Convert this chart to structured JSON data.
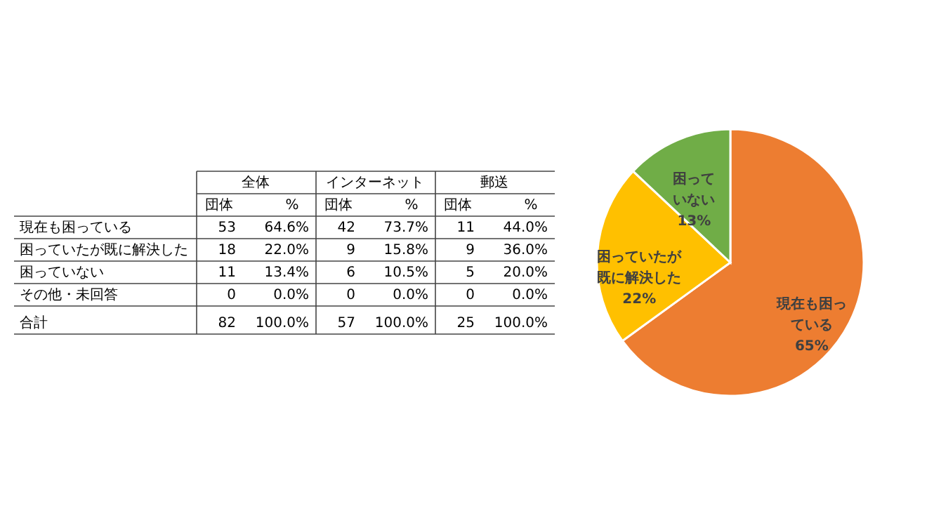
{
  "chart_data": [
    {
      "type": "other",
      "annotations": [
        "全体",
        "インターネット",
        "郵送",
        "団体",
        "%",
        "団体",
        "%",
        "団体",
        "%",
        "現在も困っている",
        "53",
        "64.6%",
        "42",
        "73.7%",
        "11",
        "44.0%",
        "困っていたが既に解決した",
        "18",
        "22.0%",
        "9",
        "15.8%",
        "9",
        "36.0%",
        "困っていない",
        "11",
        "13.4%",
        "6",
        "10.5%",
        "5",
        "20.0%",
        "その他・未回答",
        "0",
        "0.0%",
        "0",
        "0.0%",
        "0",
        "0.0%",
        "合計",
        "82",
        "100.0%",
        "57",
        "100.0%",
        "25",
        "100.0%"
      ]
    },
    {
      "type": "pie",
      "categories": [
        "現在も困っている",
        "困っていたが既に解決した",
        "困っていない"
      ],
      "values": [
        65,
        22,
        13
      ],
      "colors": [
        "#ed7d31",
        "#ffc000",
        "#70ad47"
      ],
      "value_labels": [
        "65%",
        "22%",
        "13%"
      ]
    }
  ]
}
